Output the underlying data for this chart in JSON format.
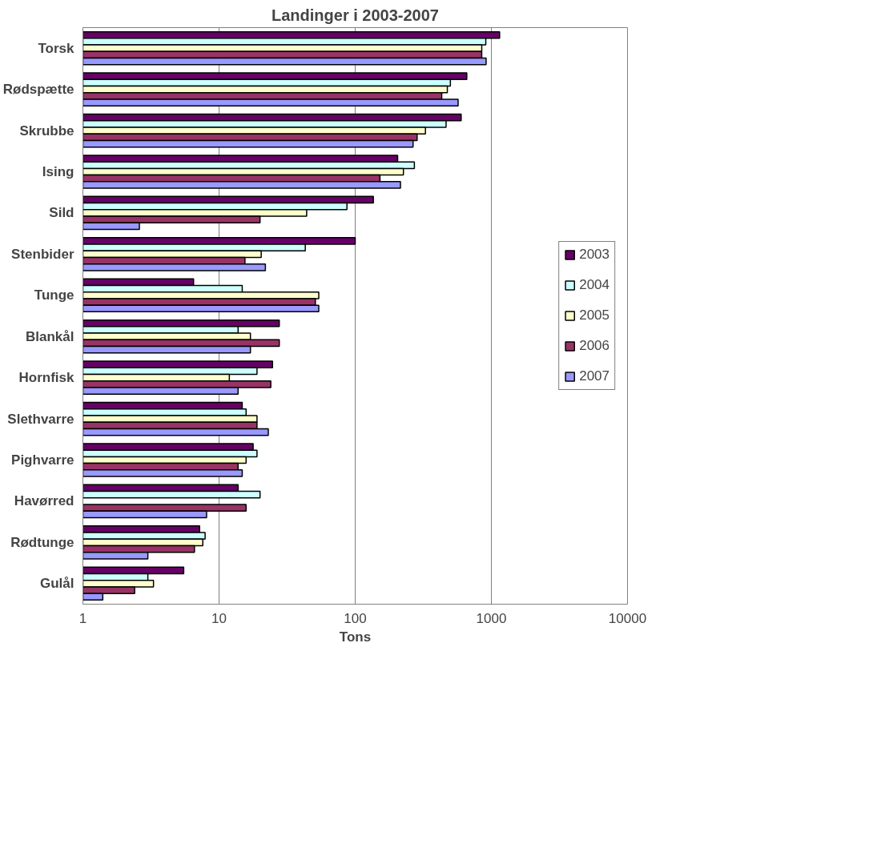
{
  "chart_data": {
    "type": "bar",
    "orientation": "horizontal",
    "title": "Landinger i 2003-2007",
    "xlabel": "Tons",
    "categories": [
      "Torsk",
      "Rødspætte",
      "Skrubbe",
      "Ising",
      "Sild",
      "Stenbider",
      "Tunge",
      "Blankål",
      "Hornfisk",
      "Slethvarre",
      "Pighvarre",
      "Havørred",
      "Rødtunge",
      "Gulål"
    ],
    "series": [
      {
        "name": "2003",
        "color": "#660066",
        "values": [
          1150,
          660,
          600,
          205,
          136,
          100,
          6.5,
          27.7,
          24.7,
          14.8,
          17.8,
          13.8,
          7.2,
          5.5
        ]
      },
      {
        "name": "2004",
        "color": "#ccffff",
        "values": [
          910,
          500,
          465,
          272,
          87,
          43,
          14.8,
          13.8,
          19,
          15.8,
          19,
          20,
          7.9,
          3.0
        ]
      },
      {
        "name": "2005",
        "color": "#ffffcc",
        "values": [
          850,
          475,
          328,
          226,
          44,
          20.4,
          54,
          17,
          11.9,
          19,
          15.8,
          null,
          7.6,
          3.3
        ]
      },
      {
        "name": "2006",
        "color": "#993366",
        "values": [
          850,
          432,
          285,
          152,
          20,
          15.5,
          51,
          27.7,
          24,
          19,
          13.8,
          15.8,
          6.6,
          2.4
        ]
      },
      {
        "name": "2007",
        "color": "#9999ff",
        "values": [
          915,
          570,
          266,
          215,
          2.6,
          21.9,
          54,
          17,
          13.8,
          23,
          14.8,
          8.1,
          3.0,
          1.4
        ]
      }
    ],
    "log": "x",
    "xlim": [
      1,
      10000
    ],
    "xticks": [
      1,
      10,
      100,
      1000,
      10000
    ],
    "grid": "x",
    "legend": "right"
  }
}
